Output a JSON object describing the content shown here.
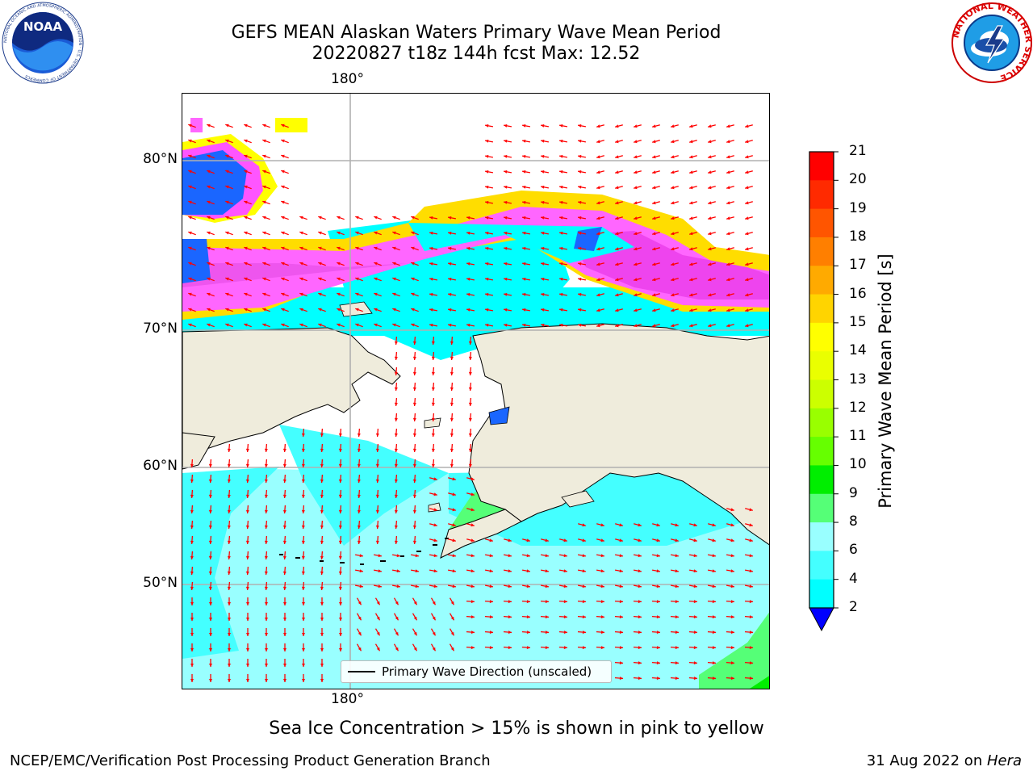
{
  "header": {
    "title_line1": "GEFS MEAN Alaskan Waters Primary Wave Mean Period",
    "title_line2": "20220827 t18z 144h fcst   Max: 12.52"
  },
  "logos": {
    "noaa": "NOAA",
    "noaa_ring_text": "NATIONAL OCEANIC AND ATMOSPHERIC ADMINISTRATION · U.S. DEPARTMENT OF COMMERCE",
    "nws_ring_text": "NATIONAL WEATHER SERVICE"
  },
  "map": {
    "longitude_top": "180°",
    "longitude_bottom": "180°",
    "latitudes": [
      "80°N",
      "70°N",
      "60°N",
      "50°N"
    ],
    "land_color": "#efecdc",
    "arrow_color": "#ff0000"
  },
  "legend": {
    "label": "Primary Wave Direction (unscaled)"
  },
  "colorbar": {
    "label": "Primary Wave Mean Period [s]",
    "ticks": [
      "21",
      "20",
      "19",
      "18",
      "17",
      "16",
      "15",
      "14",
      "13",
      "12",
      "11",
      "10",
      "9",
      "8",
      "6",
      "4",
      "2"
    ],
    "colors": [
      "#ff0000",
      "#ff2a00",
      "#ff5500",
      "#ff7f00",
      "#ffaa00",
      "#ffd400",
      "#ffff00",
      "#eaff00",
      "#ccff00",
      "#99ff00",
      "#66ff00",
      "#00ee00",
      "#55ff77",
      "#99ffff",
      "#44ffff",
      "#00ffff",
      "#0077ff"
    ],
    "under_color": "#0000ff"
  },
  "footer": {
    "subtitle": "Sea Ice Concentration > 15% is shown in pink to yellow",
    "left": "NCEP/EMC/Verification Post Processing Product Generation Branch",
    "date": "31 Aug 2022 on ",
    "machine": "Hera"
  }
}
